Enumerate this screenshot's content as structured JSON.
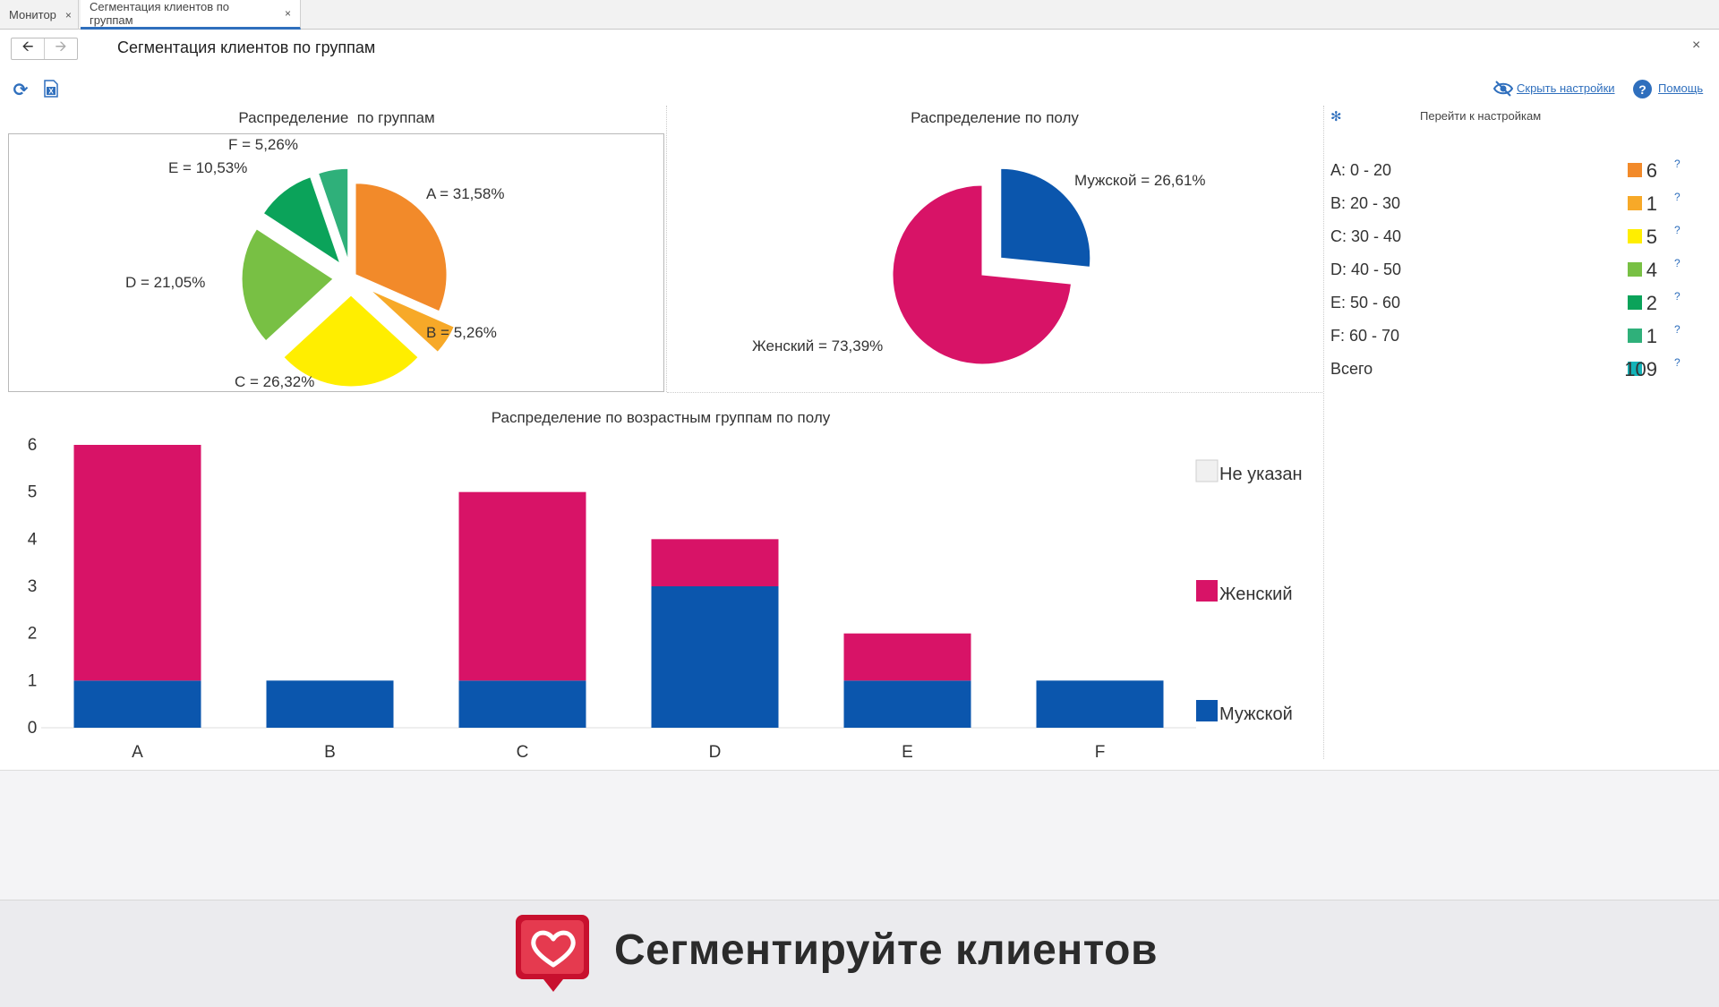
{
  "tabs": [
    {
      "label": "Монитор",
      "active": false
    },
    {
      "label": "Сегментация клиентов по группам",
      "active": true
    }
  ],
  "header": {
    "title": "Сегментация клиентов по группам",
    "hide_settings": "Скрыть настройки",
    "help": "Помощь"
  },
  "panels": {
    "groups_title": "Распределение  по группам",
    "gender_title": "Распределение по полу",
    "bars_title": "Распределение по возрастным группам по полу"
  },
  "pie_groups": {
    "labels": {
      "A": "A = 31,58%",
      "B": "B = 5,26%",
      "C": "C = 26,32%",
      "D": "D = 21,05%",
      "E": "E = 10,53%",
      "F": "F = 5,26%"
    }
  },
  "pie_gender": {
    "labels": {
      "male": "Мужской = 26,61%",
      "female": "Женский = 73,39%"
    }
  },
  "settings": {
    "goto": "Перейти к настройкам",
    "rows": [
      {
        "label": "A: 0 - 20",
        "count": "6",
        "color": "#f28a2a"
      },
      {
        "label": "B: 20 - 30",
        "count": "1",
        "color": "#f7a928"
      },
      {
        "label": "C: 30 - 40",
        "count": "5",
        "color": "#ffee00"
      },
      {
        "label": "D: 40 - 50",
        "count": "4",
        "color": "#78c044"
      },
      {
        "label": "E: 50 - 60",
        "count": "2",
        "color": "#0ba35a"
      },
      {
        "label": "F: 60 - 70",
        "count": "1",
        "color": "#2fb07a"
      },
      {
        "label": "Всего",
        "count": "109",
        "color": "#14b3b8"
      }
    ],
    "help_mark": "?"
  },
  "chart_data": [
    {
      "type": "pie",
      "title": "Распределение  по группам",
      "categories": [
        "A",
        "B",
        "C",
        "D",
        "E",
        "F"
      ],
      "values": [
        31.58,
        5.26,
        26.32,
        21.05,
        10.53,
        5.26
      ],
      "colors": [
        "#f28a2a",
        "#f7a928",
        "#ffee00",
        "#78c044",
        "#0ba35a",
        "#2fb07a"
      ]
    },
    {
      "type": "pie",
      "title": "Распределение по полу",
      "categories": [
        "Мужской",
        "Женский"
      ],
      "values": [
        26.61,
        73.39
      ],
      "colors": [
        "#0b56ad",
        "#d81367"
      ]
    },
    {
      "type": "bar",
      "stacked": true,
      "title": "Распределение по возрастным группам по полу",
      "categories": [
        "A",
        "B",
        "C",
        "D",
        "E",
        "F"
      ],
      "series": [
        {
          "name": "Мужской",
          "values": [
            1,
            1,
            1,
            3,
            1,
            1
          ],
          "color": "#0b56ad"
        },
        {
          "name": "Женский",
          "values": [
            5,
            0,
            4,
            1,
            1,
            0
          ],
          "color": "#d81367"
        },
        {
          "name": "Не указан",
          "values": [
            0,
            0,
            0,
            0,
            0,
            0
          ],
          "color": "#f0f0f0"
        }
      ],
      "ylim": [
        0,
        6
      ],
      "yticks": [
        "0",
        "1",
        "2",
        "3",
        "4",
        "5",
        "6"
      ],
      "legend_order": [
        "Не указан",
        "Женский",
        "Мужской"
      ],
      "legend_position": "right"
    }
  ],
  "banner": {
    "text": "Сегментируйте клиентов"
  }
}
